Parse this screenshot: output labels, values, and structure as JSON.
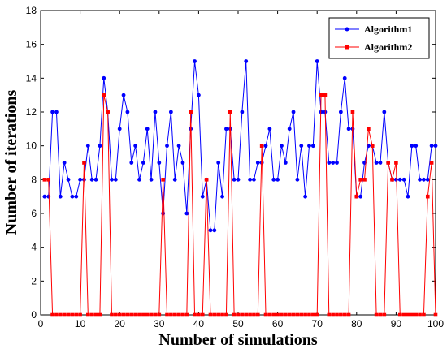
{
  "chart_data": {
    "type": "line",
    "xlabel": "Number of simulations",
    "ylabel": "Number of iterations",
    "xlim": [
      0,
      100
    ],
    "ylim": [
      0,
      18
    ],
    "xticks": [
      0,
      10,
      20,
      30,
      40,
      50,
      60,
      70,
      80,
      90,
      100
    ],
    "yticks": [
      0,
      2,
      4,
      6,
      8,
      10,
      12,
      14,
      16,
      18
    ],
    "grid": false,
    "legend_position": "top-right",
    "x": [
      1,
      2,
      3,
      4,
      5,
      6,
      7,
      8,
      9,
      10,
      11,
      12,
      13,
      14,
      15,
      16,
      17,
      18,
      19,
      20,
      21,
      22,
      23,
      24,
      25,
      26,
      27,
      28,
      29,
      30,
      31,
      32,
      33,
      34,
      35,
      36,
      37,
      38,
      39,
      40,
      41,
      42,
      43,
      44,
      45,
      46,
      47,
      48,
      49,
      50,
      51,
      52,
      53,
      54,
      55,
      56,
      57,
      58,
      59,
      60,
      61,
      62,
      63,
      64,
      65,
      66,
      67,
      68,
      69,
      70,
      71,
      72,
      73,
      74,
      75,
      76,
      77,
      78,
      79,
      80,
      81,
      82,
      83,
      84,
      85,
      86,
      87,
      88,
      89,
      90,
      91,
      92,
      93,
      94,
      95,
      96,
      97,
      98,
      99,
      100
    ],
    "series": [
      {
        "name": "Algorithm1",
        "color": "#0000ff",
        "marker": "circle",
        "values": [
          7,
          7,
          12,
          12,
          7,
          9,
          8,
          7,
          7,
          8,
          8,
          10,
          8,
          8,
          10,
          14,
          12,
          8,
          8,
          11,
          13,
          12,
          9,
          10,
          8,
          9,
          11,
          8,
          12,
          9,
          6,
          10,
          12,
          8,
          10,
          9,
          6,
          11,
          15,
          13,
          7,
          8,
          5,
          5,
          9,
          7,
          11,
          11,
          8,
          8,
          12,
          15,
          8,
          8,
          9,
          9,
          10,
          11,
          8,
          8,
          10,
          9,
          11,
          12,
          8,
          10,
          7,
          10,
          10,
          15,
          12,
          12,
          9,
          9,
          9,
          12,
          14,
          11,
          11,
          7,
          7,
          9,
          10,
          10,
          9,
          9,
          12,
          9,
          8,
          8,
          8,
          8,
          7,
          10,
          10,
          8,
          8,
          8,
          10,
          10
        ]
      },
      {
        "name": "Algorithm2",
        "color": "#ff0000",
        "marker": "square",
        "values": [
          8,
          8,
          0,
          0,
          0,
          0,
          0,
          0,
          0,
          0,
          9,
          0,
          0,
          0,
          0,
          13,
          12,
          0,
          0,
          0,
          0,
          0,
          0,
          0,
          0,
          0,
          0,
          0,
          0,
          0,
          8,
          0,
          0,
          0,
          0,
          0,
          0,
          12,
          0,
          0,
          0,
          8,
          0,
          0,
          0,
          0,
          0,
          12,
          0,
          0,
          0,
          0,
          0,
          0,
          0,
          10,
          0,
          0,
          0,
          0,
          0,
          0,
          0,
          0,
          0,
          0,
          0,
          0,
          0,
          0,
          13,
          13,
          0,
          0,
          0,
          0,
          0,
          0,
          12,
          7,
          8,
          8,
          11,
          10,
          0,
          0,
          0,
          9,
          8,
          9,
          0,
          0,
          0,
          0,
          0,
          0,
          0,
          7,
          9,
          0
        ]
      }
    ]
  }
}
